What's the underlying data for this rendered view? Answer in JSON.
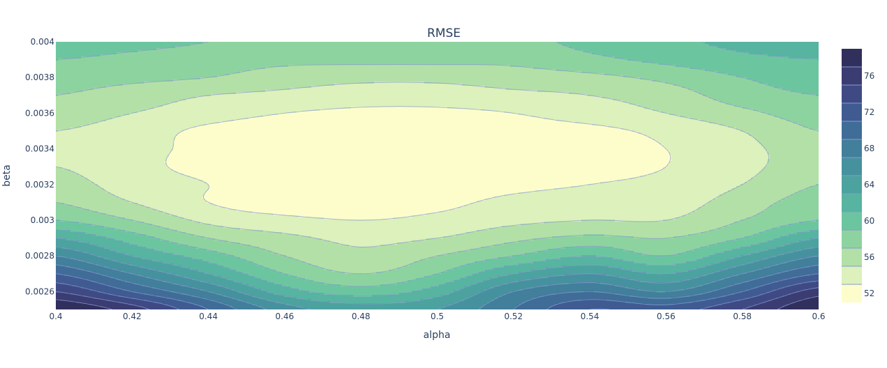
{
  "chart_data": {
    "type": "contour",
    "title": "RMSE",
    "xlabel": "alpha",
    "ylabel": "beta",
    "xlim": [
      0.4,
      0.6
    ],
    "ylim": [
      0.0025,
      0.004
    ],
    "x_ticks": [
      "0.4",
      "0.42",
      "0.44",
      "0.46",
      "0.48",
      "0.5",
      "0.52",
      "0.54",
      "0.56",
      "0.58",
      "0.6"
    ],
    "x_tick_values": [
      0.4,
      0.42,
      0.44,
      0.46,
      0.48,
      0.5,
      0.52,
      0.54,
      0.56,
      0.58,
      0.6
    ],
    "y_ticks": [
      "0.0026",
      "0.0028",
      "0.003",
      "0.0032",
      "0.0034",
      "0.0036",
      "0.0038",
      "0.004"
    ],
    "y_tick_values": [
      0.0026,
      0.0028,
      0.003,
      0.0032,
      0.0034,
      0.0036,
      0.0038,
      0.004
    ],
    "colorbar": {
      "ticks": [
        "52",
        "56",
        "60",
        "64",
        "68",
        "72",
        "76"
      ],
      "tick_values": [
        52,
        56,
        60,
        64,
        68,
        72,
        76
      ],
      "range": [
        51,
        79
      ],
      "levels": [
        51,
        53,
        55,
        57,
        59,
        61,
        63,
        65,
        67,
        69,
        71,
        73,
        75,
        77,
        79
      ],
      "colors": [
        "#fdfdcc",
        "#dcf1bb",
        "#b3e0a6",
        "#8dd3a0",
        "#6bc6a0",
        "#56b4a0",
        "#4ca29f",
        "#46919e",
        "#417f9b",
        "#3f6d98",
        "#3f5b92",
        "#3f4a85",
        "#3a3c72",
        "#312f5c",
        "#271f43"
      ]
    },
    "grid": {
      "x": [
        0.4,
        0.42,
        0.44,
        0.46,
        0.48,
        0.5,
        0.52,
        0.54,
        0.56,
        0.58,
        0.6
      ],
      "y": [
        0.0025,
        0.0026,
        0.0027,
        0.0028,
        0.0029,
        0.003,
        0.0031,
        0.0032,
        0.0033,
        0.0034,
        0.0035,
        0.0036,
        0.0037,
        0.0038,
        0.0039,
        0.004
      ],
      "z": [
        [
          79,
          76,
          71,
          66,
          64,
          65,
          69,
          73,
          72,
          75,
          79
        ],
        [
          75,
          71,
          67,
          62,
          60,
          62,
          67,
          69,
          67,
          71,
          76
        ],
        [
          71,
          67,
          63,
          59,
          57,
          59,
          63,
          65,
          63,
          67,
          71
        ],
        [
          67,
          63,
          60,
          57,
          55.5,
          57,
          59,
          61,
          59,
          63,
          67
        ],
        [
          63,
          60,
          57,
          55.5,
          54.5,
          55,
          56.5,
          57.5,
          57,
          59,
          63
        ],
        [
          59,
          57,
          54.5,
          53.5,
          53,
          53.5,
          54.5,
          55,
          55,
          57,
          59
        ],
        [
          57,
          55,
          53,
          52,
          52,
          52.5,
          53.5,
          54,
          54,
          56,
          58
        ],
        [
          56,
          54,
          53,
          52,
          51.5,
          52,
          52.5,
          53,
          53.5,
          55,
          57
        ],
        [
          55,
          53.5,
          52.5,
          51.5,
          51,
          51.5,
          52,
          52.5,
          53,
          54.5,
          56
        ],
        [
          54,
          53.5,
          52.5,
          51.5,
          51,
          51,
          51.5,
          52.5,
          53,
          54.5,
          56
        ],
        [
          55,
          54,
          52.5,
          51.5,
          51,
          51,
          52,
          52.5,
          53.5,
          55,
          57
        ],
        [
          56,
          55,
          54,
          53,
          52.5,
          52.5,
          53,
          54,
          55,
          56.5,
          58
        ],
        [
          57,
          56,
          55,
          54.5,
          54,
          54,
          54.5,
          55,
          56,
          58,
          59
        ],
        [
          58,
          57.5,
          57,
          56,
          55.5,
          55.5,
          56,
          56.5,
          57.5,
          59,
          60
        ],
        [
          59,
          58.5,
          58,
          57.5,
          57.5,
          57.5,
          57.5,
          58.5,
          59.5,
          60.5,
          61
        ],
        [
          60,
          59.5,
          59,
          58.5,
          58.5,
          58.5,
          58.5,
          59.5,
          60.5,
          61.5,
          62
        ]
      ]
    }
  }
}
